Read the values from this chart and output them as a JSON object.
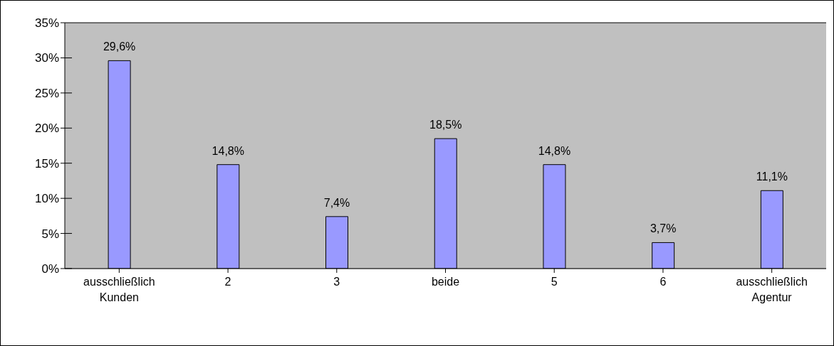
{
  "chart_data": {
    "type": "bar",
    "categories": [
      "ausschließlich\nKunden",
      "2",
      "3",
      "beide",
      "5",
      "6",
      "ausschließlich\nAgentur"
    ],
    "values": [
      29.6,
      14.8,
      7.4,
      18.5,
      14.8,
      3.7,
      11.1
    ],
    "value_labels": [
      "29,6%",
      "14,8%",
      "7,4%",
      "18,5%",
      "14,8%",
      "3,7%",
      "11,1%"
    ],
    "color": "#9999ff",
    "ylim": [
      0,
      35
    ],
    "yticks": [
      {
        "value": 0,
        "label": "0%"
      },
      {
        "value": 5,
        "label": "5%"
      },
      {
        "value": 10,
        "label": "10%"
      },
      {
        "value": 15,
        "label": "15%"
      },
      {
        "value": 20,
        "label": "20%"
      },
      {
        "value": 25,
        "label": "25%"
      },
      {
        "value": 30,
        "label": "30%"
      },
      {
        "value": 35,
        "label": "35%"
      }
    ],
    "grid": "y",
    "legend": false
  }
}
